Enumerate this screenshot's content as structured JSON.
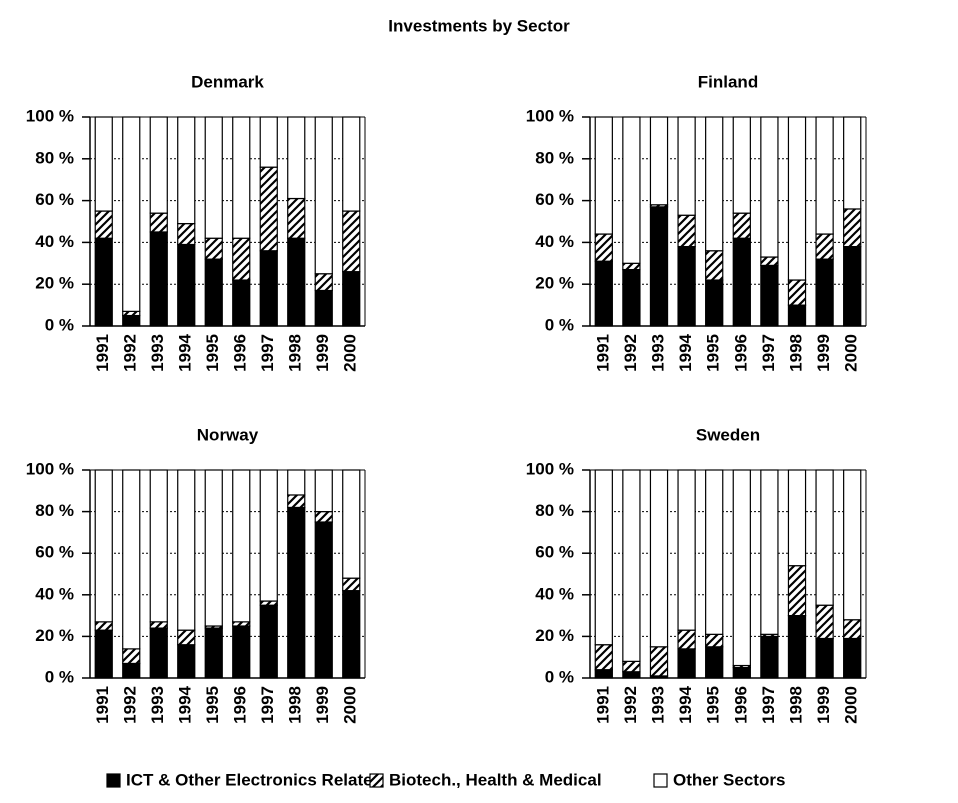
{
  "title": "Investments by Sector",
  "chart_data": [
    {
      "type": "stacked_bar",
      "title": "Denmark",
      "categories": [
        "1991",
        "1992",
        "1993",
        "1994",
        "1995",
        "1996",
        "1997",
        "1998",
        "1999",
        "2000"
      ],
      "series": [
        {
          "name": "ICT & Other Electronics Related",
          "color": "#000000",
          "values": [
            42,
            5,
            45,
            39,
            32,
            22,
            36,
            42,
            17,
            26
          ]
        },
        {
          "name": "Biotech., Health & Medical",
          "color": "#000000",
          "pattern": "hatch",
          "values": [
            13,
            2,
            9,
            10,
            10,
            20,
            40,
            19,
            8,
            29
          ]
        },
        {
          "name": "Other Sectors",
          "color": "#ffffff",
          "values": [
            45,
            93,
            46,
            51,
            58,
            58,
            24,
            39,
            75,
            45
          ]
        }
      ],
      "ylim": [
        0,
        100
      ],
      "yticks": [
        {
          "value": 0,
          "label": "0 %"
        },
        {
          "value": 20,
          "label": "20 %"
        },
        {
          "value": 40,
          "label": "40 %"
        },
        {
          "value": 60,
          "label": "60 %"
        },
        {
          "value": 80,
          "label": "80 %"
        },
        {
          "value": 100,
          "label": "100 %"
        }
      ],
      "grid": true
    },
    {
      "type": "stacked_bar",
      "title": "Finland",
      "categories": [
        "1991",
        "1992",
        "1993",
        "1994",
        "1995",
        "1996",
        "1997",
        "1998",
        "1999",
        "2000"
      ],
      "series": [
        {
          "name": "ICT & Other Electronics Related",
          "color": "#000000",
          "values": [
            31,
            27,
            57,
            38,
            22,
            42,
            29,
            10,
            32,
            38
          ]
        },
        {
          "name": "Biotech., Health & Medical",
          "color": "#000000",
          "pattern": "hatch",
          "values": [
            13,
            3,
            1,
            15,
            14,
            12,
            4,
            12,
            12,
            18
          ]
        },
        {
          "name": "Other Sectors",
          "color": "#ffffff",
          "values": [
            56,
            70,
            42,
            47,
            64,
            46,
            67,
            78,
            56,
            44
          ]
        }
      ],
      "ylim": [
        0,
        100
      ],
      "yticks": [
        {
          "value": 0,
          "label": "0 %"
        },
        {
          "value": 20,
          "label": "20 %"
        },
        {
          "value": 40,
          "label": "40 %"
        },
        {
          "value": 60,
          "label": "60 %"
        },
        {
          "value": 80,
          "label": "80 %"
        },
        {
          "value": 100,
          "label": "100 %"
        }
      ],
      "grid": true
    },
    {
      "type": "stacked_bar",
      "title": "Norway",
      "categories": [
        "1991",
        "1992",
        "1993",
        "1994",
        "1995",
        "1996",
        "1997",
        "1998",
        "1999",
        "2000"
      ],
      "series": [
        {
          "name": "ICT & Other Electronics Related",
          "color": "#000000",
          "values": [
            23,
            7,
            24,
            16,
            24,
            25,
            35,
            82,
            75,
            42
          ]
        },
        {
          "name": "Biotech., Health & Medical",
          "color": "#000000",
          "pattern": "hatch",
          "values": [
            4,
            7,
            3,
            7,
            1,
            2,
            2,
            6,
            5,
            6
          ]
        },
        {
          "name": "Other Sectors",
          "color": "#ffffff",
          "values": [
            73,
            86,
            73,
            77,
            75,
            73,
            63,
            12,
            20,
            52
          ]
        }
      ],
      "ylim": [
        0,
        100
      ],
      "yticks": [
        {
          "value": 0,
          "label": "0 %"
        },
        {
          "value": 20,
          "label": "20 %"
        },
        {
          "value": 40,
          "label": "40 %"
        },
        {
          "value": 60,
          "label": "60 %"
        },
        {
          "value": 80,
          "label": "80 %"
        },
        {
          "value": 100,
          "label": "100 %"
        }
      ],
      "grid": true
    },
    {
      "type": "stacked_bar",
      "title": "Sweden",
      "categories": [
        "1991",
        "1992",
        "1993",
        "1994",
        "1995",
        "1996",
        "1997",
        "1998",
        "1999",
        "2000"
      ],
      "series": [
        {
          "name": "ICT & Other Electronics Related",
          "color": "#000000",
          "values": [
            4,
            3,
            1,
            14,
            15,
            5,
            20,
            30,
            19,
            19
          ]
        },
        {
          "name": "Biotech., Health & Medical",
          "color": "#000000",
          "pattern": "hatch",
          "values": [
            12,
            5,
            14,
            9,
            6,
            1,
            1,
            24,
            16,
            9
          ]
        },
        {
          "name": "Other Sectors",
          "color": "#ffffff",
          "values": [
            84,
            92,
            85,
            77,
            79,
            94,
            79,
            46,
            65,
            72
          ]
        }
      ],
      "ylim": [
        0,
        100
      ],
      "yticks": [
        {
          "value": 0,
          "label": "0 %"
        },
        {
          "value": 20,
          "label": "20 %"
        },
        {
          "value": 40,
          "label": "40 %"
        },
        {
          "value": 60,
          "label": "60 %"
        },
        {
          "value": 80,
          "label": "80 %"
        },
        {
          "value": 100,
          "label": "100 %"
        }
      ],
      "grid": true
    }
  ]
}
